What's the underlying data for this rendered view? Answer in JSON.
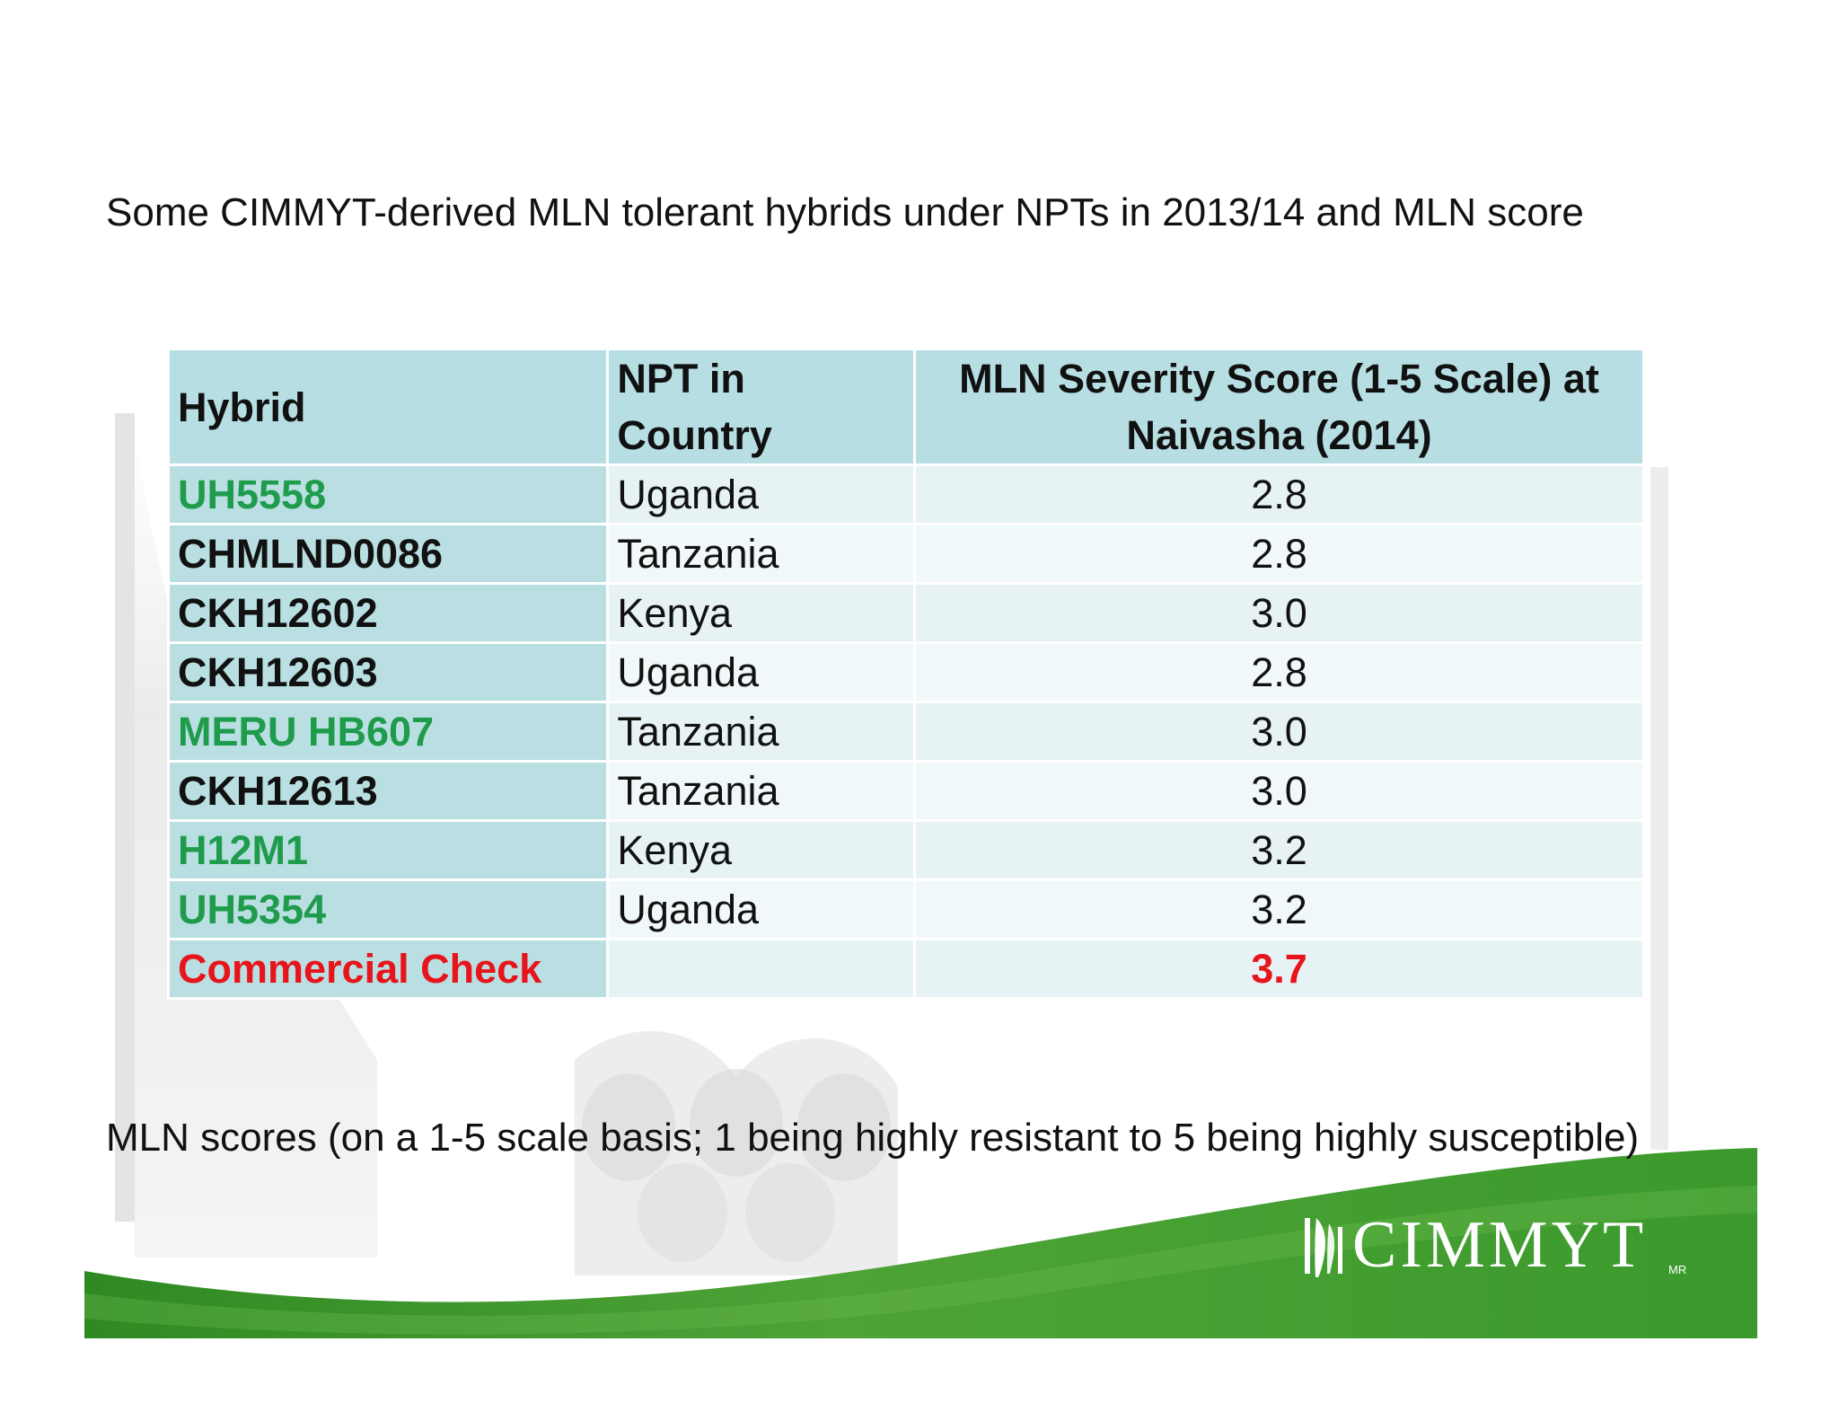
{
  "slide": {
    "title": "Some CIMMYT-derived MLN tolerant hybrids under NPTs in 2013/14 and MLN score",
    "footnote": "MLN scores (on a 1-5 scale basis; 1 being highly resistant to 5 being highly susceptible)"
  },
  "table": {
    "headers": {
      "hybrid": "Hybrid",
      "npt_line1": "NPT in",
      "npt_line2": "Country",
      "score_line1": "MLN Severity Score (1-5 Scale) at",
      "score_line2": "Naivasha (2014)"
    },
    "rows": [
      {
        "hybrid": "UH5558",
        "npt": "Uganda",
        "score": "2.8",
        "hybrid_color": "#1f9b4c"
      },
      {
        "hybrid": "CHMLND0086",
        "npt": "Tanzania",
        "score": "2.8",
        "hybrid_color": "#111111"
      },
      {
        "hybrid": "CKH12602",
        "npt": "Kenya",
        "score": "3.0",
        "hybrid_color": "#111111"
      },
      {
        "hybrid": "CKH12603",
        "npt": "Uganda",
        "score": "2.8",
        "hybrid_color": "#111111"
      },
      {
        "hybrid": "MERU HB607",
        "npt": "Tanzania",
        "score": "3.0",
        "hybrid_color": "#1f9b4c"
      },
      {
        "hybrid": "CKH12613",
        "npt": "Tanzania",
        "score": "3.0",
        "hybrid_color": "#111111"
      },
      {
        "hybrid": "H12M1",
        "npt": "Kenya",
        "score": "3.2",
        "hybrid_color": "#1f9b4c"
      },
      {
        "hybrid": "UH5354",
        "npt": "Uganda",
        "score": "3.2",
        "hybrid_color": "#1f9b4c"
      },
      {
        "hybrid": "Commercial Check",
        "npt": "",
        "score": "3.7",
        "hybrid_color": "#e8141b"
      }
    ]
  },
  "logo": {
    "text": "CIMMYT",
    "suffix": "MR",
    "icon": "wheat-ear-icon"
  },
  "colors": {
    "header_bg": "#b7dfe3",
    "accent_green": "#1f9b4c",
    "accent_red": "#e8141b",
    "banner_green": "#3f9a2e"
  }
}
